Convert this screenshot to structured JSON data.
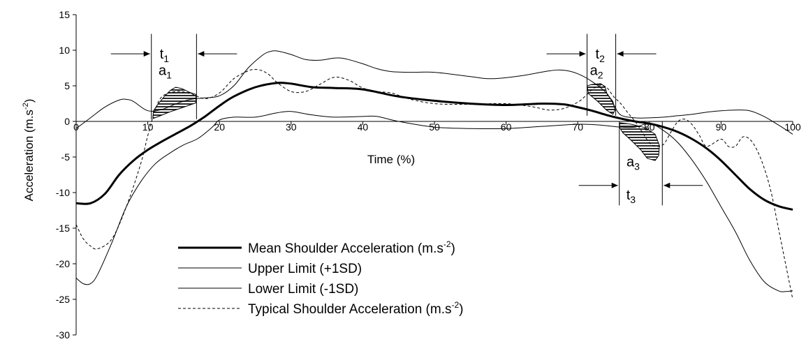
{
  "chart_data": {
    "type": "line",
    "title": "",
    "xlabel": "Time (%)",
    "ylabel": "Acceleration (m.s",
    "ylabel_sup": "-2",
    "ylabel_close": ")",
    "xlim": [
      0,
      100
    ],
    "ylim": [
      -30,
      15
    ],
    "xticks": [
      0,
      10,
      20,
      30,
      40,
      50,
      60,
      70,
      80,
      90,
      100
    ],
    "yticks": [
      15,
      10,
      5,
      0,
      -5,
      -10,
      -15,
      -20,
      -25,
      -30
    ],
    "grid": false,
    "legend_position": "bottom-center",
    "series": [
      {
        "name": "Mean Shoulder Acceleration (m.s",
        "name_sup": "-2",
        "name_close": ")",
        "style": "bold",
        "color": "#000000",
        "x": [
          0,
          2,
          4,
          6,
          8,
          10,
          12,
          14,
          16,
          18,
          20,
          22,
          25,
          28,
          30,
          33,
          36,
          40,
          45,
          50,
          55,
          60,
          65,
          68,
          70,
          72,
          74,
          76,
          78,
          80,
          82,
          84,
          86,
          88,
          90,
          92,
          94,
          96,
          98,
          100
        ],
        "y": [
          -11.5,
          -11.5,
          -10.2,
          -7.5,
          -5.5,
          -4,
          -2.8,
          -1.7,
          -0.6,
          0.7,
          2.2,
          3.5,
          4.8,
          5.4,
          5.3,
          4.8,
          4.7,
          4.5,
          3.5,
          2.9,
          2.5,
          2.3,
          2.5,
          2.4,
          2,
          1.5,
          0.9,
          0.4,
          0,
          -0.3,
          -0.8,
          -1.5,
          -2.5,
          -3.8,
          -5.5,
          -7.5,
          -9.5,
          -11,
          -11.9,
          -12.4
        ]
      },
      {
        "name": "Upper Limit (+1SD)",
        "style": "thin",
        "color": "#000000",
        "x": [
          0,
          2,
          4,
          6,
          7,
          8,
          10,
          12,
          14,
          16,
          18,
          20,
          22,
          24,
          26,
          27,
          28,
          30,
          32,
          34,
          36,
          37,
          38,
          40,
          42,
          44,
          47,
          50,
          55,
          58,
          62,
          66,
          68,
          70,
          72,
          74,
          75,
          76,
          78,
          80,
          82,
          84,
          86,
          88,
          90,
          92,
          94,
          96,
          98,
          100
        ],
        "y": [
          -1,
          0.5,
          2,
          3,
          3.1,
          2.8,
          1.5,
          1.7,
          2.5,
          3.1,
          3.3,
          3.6,
          5,
          7.5,
          9.3,
          9.8,
          9.9,
          9.4,
          8.7,
          8.6,
          8.9,
          8.9,
          8.7,
          8.1,
          7.4,
          7,
          6.9,
          6.9,
          6.3,
          6,
          6.4,
          7.1,
          7.2,
          6.7,
          5.6,
          4,
          2.4,
          0.9,
          0.5,
          0.5,
          0.6,
          0.8,
          1,
          1.3,
          1.5,
          1.6,
          1.5,
          0.7,
          -0.5,
          -1.8
        ]
      },
      {
        "name": "Lower Limit (-1SD)",
        "style": "thin",
        "color": "#000000",
        "x": [
          0,
          1,
          2,
          3,
          5,
          7,
          9,
          11,
          13,
          15,
          17,
          19,
          20,
          22,
          25,
          28,
          30,
          33,
          36,
          40,
          42,
          45,
          50,
          55,
          60,
          65,
          70,
          73,
          76,
          78,
          80,
          82,
          84,
          86,
          88,
          90,
          92,
          94,
          96,
          98,
          99,
          100
        ],
        "y": [
          -22,
          -22.8,
          -22.8,
          -21.5,
          -17,
          -12,
          -8.5,
          -6,
          -4.5,
          -3.3,
          -2.4,
          -0.8,
          0.2,
          0.6,
          0.6,
          1.2,
          1.4,
          0.9,
          0.6,
          0.7,
          0.7,
          0,
          -0.8,
          -1,
          -1,
          -0.7,
          -0.4,
          -0.5,
          -0.8,
          -0.8,
          -0.3,
          -1.3,
          -3,
          -5.5,
          -8.5,
          -12,
          -15.5,
          -19.5,
          -22.5,
          -23.8,
          -23.9,
          -23.8
        ]
      },
      {
        "name": "Typical Shoulder Acceleration (m.s",
        "name_sup": "-2",
        "name_close": ")",
        "style": "dashed",
        "color": "#000000",
        "x": [
          0,
          1,
          2,
          3,
          5,
          7,
          9,
          10,
          11,
          12,
          14,
          16,
          18,
          20,
          22,
          24,
          25,
          26,
          27,
          28,
          30,
          32,
          34,
          36,
          38,
          40,
          42,
          44,
          46,
          48,
          50,
          52,
          54,
          56,
          58,
          60,
          62,
          64,
          66,
          68,
          70,
          71,
          72,
          73,
          74,
          75,
          76,
          77,
          78,
          79,
          80,
          81,
          82,
          83,
          84,
          85,
          86,
          87,
          88,
          90,
          91,
          92,
          93,
          94,
          95,
          96,
          97,
          98,
          99,
          100
        ],
        "y": [
          -14.5,
          -16.5,
          -17.5,
          -17.9,
          -16.5,
          -12,
          -6,
          -2,
          1.5,
          3.5,
          4.2,
          3.9,
          3.2,
          4,
          6,
          7.1,
          7.3,
          7.1,
          6.5,
          5.5,
          4.2,
          4.2,
          5.2,
          6.2,
          5.8,
          4.7,
          4.2,
          4,
          3.3,
          2.8,
          2.5,
          2.4,
          2.4,
          2.4,
          2.5,
          2.5,
          2.3,
          2,
          1.6,
          1.8,
          2.7,
          3.5,
          4.5,
          5,
          4.8,
          3.5,
          2.5,
          1.2,
          0,
          -1.5,
          -3,
          -3.5,
          -3.2,
          -1.5,
          0,
          0.3,
          -0.5,
          -2,
          -3.5,
          -2.5,
          -3.5,
          -3.5,
          -2.2,
          -2.5,
          -4,
          -6.5,
          -10,
          -15,
          -20,
          -25
        ]
      }
    ],
    "annotations": [
      {
        "label": "t",
        "sub": "1",
        "kind": "interval",
        "x_start": 10.5,
        "x_end": 16.8,
        "y": 9.5
      },
      {
        "label": "a",
        "sub": "1",
        "kind": "area"
      },
      {
        "label": "t",
        "sub": "2",
        "kind": "interval",
        "x_start": 71.3,
        "x_end": 75.3,
        "y": 9.5
      },
      {
        "label": "a",
        "sub": "2",
        "kind": "area"
      },
      {
        "label": "t",
        "sub": "3",
        "kind": "interval",
        "x_start": 75.8,
        "x_end": 81.8,
        "y": -9
      },
      {
        "label": "a",
        "sub": "3",
        "kind": "area"
      }
    ]
  }
}
